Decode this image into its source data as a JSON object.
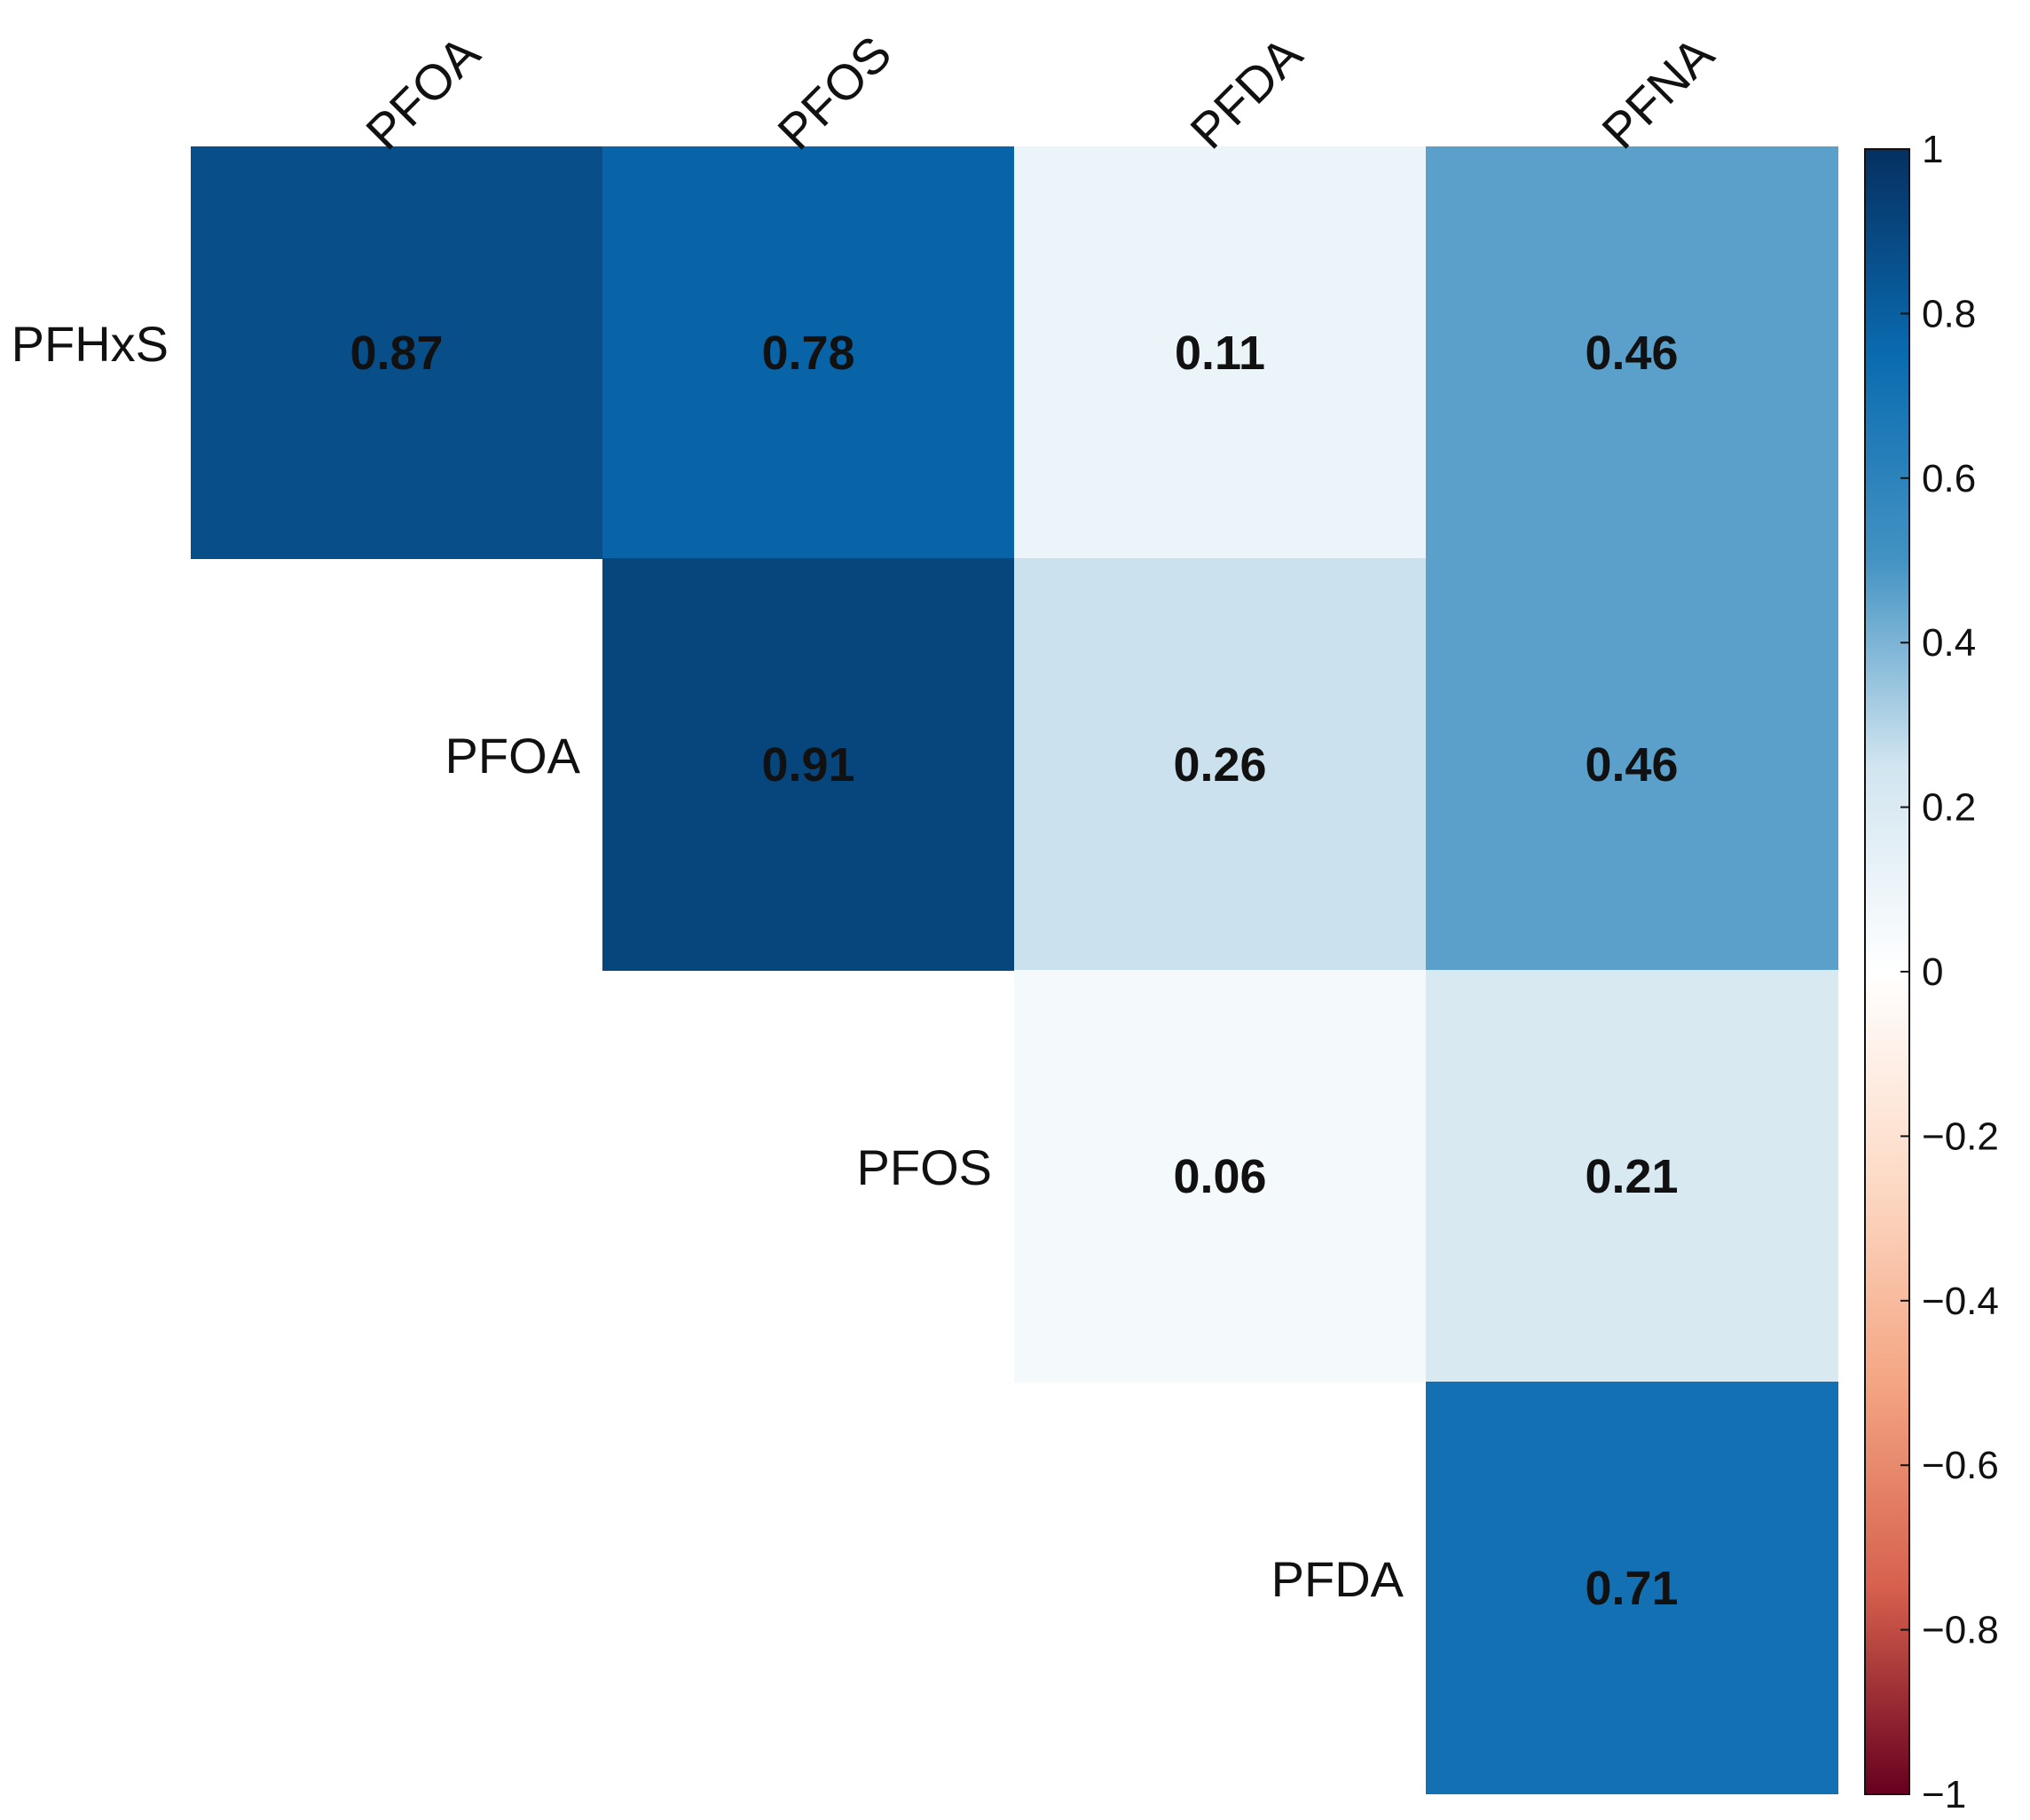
{
  "chart_data": {
    "type": "heatmap",
    "title": "",
    "xlabel": "",
    "ylabel": "",
    "columns": [
      "PFOA",
      "PFOS",
      "PFDA",
      "PFNA"
    ],
    "rows": [
      "PFHxS",
      "PFOA",
      "PFOS",
      "PFDA"
    ],
    "cells": [
      {
        "row": "PFHxS",
        "col": "PFOA",
        "value": 0.87,
        "label": "0.87"
      },
      {
        "row": "PFHxS",
        "col": "PFOS",
        "value": 0.78,
        "label": "0.78"
      },
      {
        "row": "PFHxS",
        "col": "PFDA",
        "value": 0.11,
        "label": "0.11"
      },
      {
        "row": "PFHxS",
        "col": "PFNA",
        "value": 0.46,
        "label": "0.46"
      },
      {
        "row": "PFOA",
        "col": "PFOS",
        "value": 0.91,
        "label": "0.91"
      },
      {
        "row": "PFOA",
        "col": "PFDA",
        "value": 0.26,
        "label": "0.26"
      },
      {
        "row": "PFOA",
        "col": "PFNA",
        "value": 0.46,
        "label": "0.46"
      },
      {
        "row": "PFOS",
        "col": "PFDA",
        "value": 0.06,
        "label": "0.06"
      },
      {
        "row": "PFOS",
        "col": "PFNA",
        "value": 0.21,
        "label": "0.21"
      },
      {
        "row": "PFDA",
        "col": "PFNA",
        "value": 0.71,
        "label": "0.71"
      }
    ],
    "colorbar": {
      "range": [
        -1,
        1
      ],
      "ticks": [
        1,
        0.8,
        0.6,
        0.4,
        0.2,
        0,
        -0.2,
        -0.4,
        -0.6,
        -0.8,
        -1
      ],
      "tick_labels": [
        "1",
        "0.8",
        "0.6",
        "0.4",
        "0.2",
        "0",
        "−0.2",
        "−0.4",
        "−0.6",
        "−0.8",
        "−1"
      ],
      "color_stops": [
        {
          "value": -1,
          "color": "#67001f"
        },
        {
          "value": -0.75,
          "color": "#d6604d"
        },
        {
          "value": -0.5,
          "color": "#f4a582"
        },
        {
          "value": -0.25,
          "color": "#fddbc7"
        },
        {
          "value": 0,
          "color": "#ffffff"
        },
        {
          "value": 0.25,
          "color": "#d1e5f0"
        },
        {
          "value": 0.5,
          "color": "#4393c3"
        },
        {
          "value": 0.75,
          "color": "#0a6bb0"
        },
        {
          "value": 1,
          "color": "#053061"
        }
      ]
    }
  }
}
